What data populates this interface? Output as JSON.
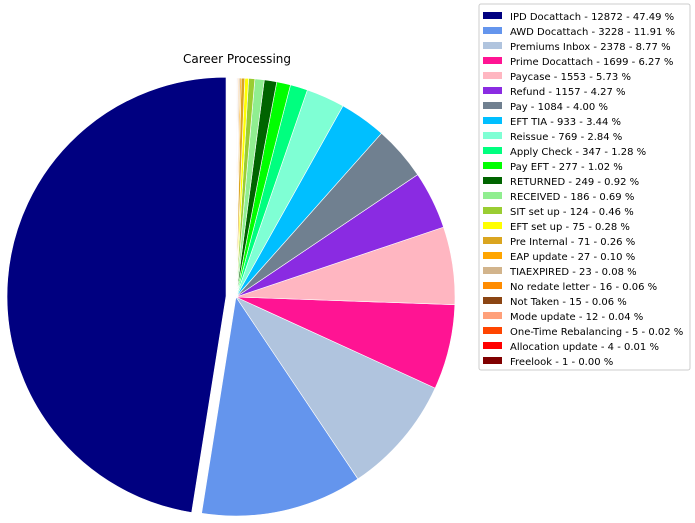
{
  "chart_data": {
    "type": "pie",
    "title": "Career Processing",
    "legend_placement": "top-right",
    "slices": [
      {
        "label": "IPD Docattach",
        "value": 12872,
        "percent": "47.49",
        "color": "#000080"
      },
      {
        "label": "AWD Docattach",
        "value": 3228,
        "percent": "11.91",
        "color": "#6495ed"
      },
      {
        "label": "Premiums Inbox",
        "value": 2378,
        "percent": "8.77",
        "color": "#b0c4de"
      },
      {
        "label": "Prime Docattach",
        "value": 1699,
        "percent": "6.27",
        "color": "#ff1493"
      },
      {
        "label": "Paycase",
        "value": 1553,
        "percent": "5.73",
        "color": "#ffb6c1"
      },
      {
        "label": "Refund",
        "value": 1157,
        "percent": "4.27",
        "color": "#8a2be2"
      },
      {
        "label": "Pay",
        "value": 1084,
        "percent": "4.00",
        "color": "#708090"
      },
      {
        "label": "EFT TIA",
        "value": 933,
        "percent": "3.44",
        "color": "#00bfff"
      },
      {
        "label": "Reissue",
        "value": 769,
        "percent": "2.84",
        "color": "#7fffd4"
      },
      {
        "label": "Apply Check",
        "value": 347,
        "percent": "1.28",
        "color": "#00ff7f"
      },
      {
        "label": "Pay EFT",
        "value": 277,
        "percent": "1.02",
        "color": "#00ff00"
      },
      {
        "label": "RETURNED",
        "value": 249,
        "percent": "0.92",
        "color": "#006400"
      },
      {
        "label": "RECEIVED",
        "value": 186,
        "percent": "0.69",
        "color": "#90ee90"
      },
      {
        "label": "SIT set up",
        "value": 124,
        "percent": "0.46",
        "color": "#9acd32"
      },
      {
        "label": "EFT set up",
        "value": 75,
        "percent": "0.28",
        "color": "#ffff00"
      },
      {
        "label": "Pre Internal",
        "value": 71,
        "percent": "0.26",
        "color": "#daa520"
      },
      {
        "label": "EAP update",
        "value": 27,
        "percent": "0.10",
        "color": "#ffa500"
      },
      {
        "label": "TIAEXPIRED",
        "value": 23,
        "percent": "0.08",
        "color": "#d2b48c"
      },
      {
        "label": "No redate letter",
        "value": 16,
        "percent": "0.06",
        "color": "#ff8c00"
      },
      {
        "label": "Not Taken",
        "value": 15,
        "percent": "0.06",
        "color": "#8b4513"
      },
      {
        "label": "Mode update",
        "value": 12,
        "percent": "0.04",
        "color": "#ffa07a"
      },
      {
        "label": "One-Time Rebalancing",
        "value": 5,
        "percent": "0.02",
        "color": "#ff4500"
      },
      {
        "label": "Allocation update",
        "value": 4,
        "percent": "0.01",
        "color": "#ff0000"
      },
      {
        "label": "Freelook",
        "value": 1,
        "percent": "0.00",
        "color": "#800000"
      }
    ]
  }
}
